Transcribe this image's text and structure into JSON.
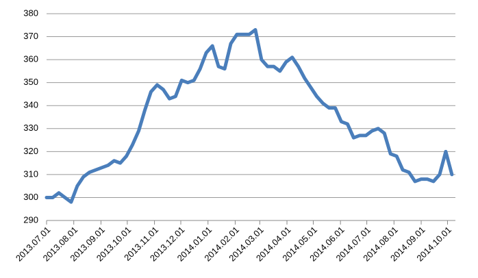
{
  "chart_data": {
    "type": "line",
    "x": [
      "2013.07.01",
      "2013.07.08",
      "2013.07.15",
      "2013.07.22",
      "2013.07.29",
      "2013.08.05",
      "2013.08.12",
      "2013.08.19",
      "2013.08.26",
      "2013.09.02",
      "2013.09.09",
      "2013.09.16",
      "2013.09.23",
      "2013.09.30",
      "2013.10.07",
      "2013.10.14",
      "2013.10.21",
      "2013.10.28",
      "2013.11.04",
      "2013.11.11",
      "2013.11.18",
      "2013.11.25",
      "2013.12.02",
      "2013.12.09",
      "2013.12.16",
      "2013.12.23",
      "2013.12.30",
      "2014.01.06",
      "2014.01.13",
      "2014.01.20",
      "2014.01.27",
      "2014.02.03",
      "2014.02.10",
      "2014.02.17",
      "2014.02.24",
      "2014.03.03",
      "2014.03.10",
      "2014.03.17",
      "2014.03.24",
      "2014.03.31",
      "2014.04.07",
      "2014.04.14",
      "2014.04.21",
      "2014.04.28",
      "2014.05.05",
      "2014.05.12",
      "2014.05.19",
      "2014.05.26",
      "2014.06.02",
      "2014.06.09",
      "2014.06.16",
      "2014.06.23",
      "2014.06.30",
      "2014.07.07",
      "2014.07.14",
      "2014.07.21",
      "2014.07.28",
      "2014.08.04",
      "2014.08.11",
      "2014.08.18",
      "2014.08.25",
      "2014.09.01",
      "2014.09.08",
      "2014.09.15",
      "2014.09.22",
      "2014.09.29",
      "2014.10.06"
    ],
    "series": [
      {
        "color": "#4a7ebb",
        "values": [
          300,
          300,
          302,
          300,
          298,
          305,
          309,
          311,
          312,
          313,
          314,
          316,
          315,
          318,
          323,
          329,
          338,
          346,
          349,
          347,
          343,
          344,
          351,
          350,
          351,
          356,
          363,
          366,
          357,
          356,
          367,
          371,
          371,
          371,
          373,
          360,
          357,
          357,
          355,
          359,
          361,
          357,
          352,
          348,
          344,
          341,
          339,
          339,
          333,
          332,
          326,
          327,
          327,
          329,
          330,
          328,
          319,
          318,
          312,
          311,
          307,
          308,
          308,
          307,
          310,
          320,
          310
        ]
      }
    ],
    "xlim": [
      "2013.07.01",
      "2014.10.10"
    ],
    "xticks": [
      "2013.07.01",
      "2013.08.01",
      "2013.09.01",
      "2013.10.01",
      "2013.11.01",
      "2013.12.01",
      "2014.01.01",
      "2014.02.01",
      "2014.03.01",
      "2014.04.01",
      "2014.05.01",
      "2014.06.01",
      "2014.07.01",
      "2014.08.01",
      "2014.09.01",
      "2014.10.01"
    ],
    "ylim": [
      290,
      380
    ],
    "yticks": [
      290,
      300,
      310,
      320,
      330,
      340,
      350,
      360,
      370,
      380
    ],
    "grid": true
  }
}
